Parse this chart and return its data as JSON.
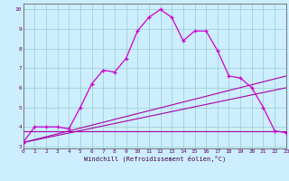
{
  "xlabel": "Windchill (Refroidissement éolien,°C)",
  "bg_color": "#cceeff",
  "grid_color": "#99cccc",
  "line_color": "#cc00cc",
  "line_color2": "#aa00aa",
  "xlim": [
    0,
    23
  ],
  "ylim": [
    3,
    10
  ],
  "xticks": [
    0,
    1,
    2,
    3,
    4,
    5,
    6,
    7,
    8,
    9,
    10,
    11,
    12,
    13,
    14,
    15,
    16,
    17,
    18,
    19,
    20,
    21,
    22,
    23
  ],
  "yticks": [
    3,
    4,
    5,
    6,
    7,
    8,
    9,
    10
  ],
  "series": {
    "line1_x": [
      0,
      1,
      2,
      3,
      4,
      5,
      6,
      7,
      8,
      9,
      10,
      11,
      12,
      13,
      14,
      15,
      16,
      17,
      18,
      19,
      20,
      21,
      22,
      23
    ],
    "line1_y": [
      3.2,
      4.0,
      4.0,
      4.0,
      3.9,
      5.0,
      6.2,
      6.9,
      6.8,
      7.5,
      8.9,
      9.6,
      10.0,
      9.6,
      8.4,
      8.9,
      8.9,
      7.9,
      6.6,
      6.5,
      6.0,
      5.0,
      3.8,
      3.7
    ],
    "line2_x": [
      0,
      23
    ],
    "line2_y": [
      3.2,
      6.6
    ],
    "line3_x": [
      0,
      23
    ],
    "line3_y": [
      3.2,
      6.0
    ],
    "line4_x": [
      0,
      23
    ],
    "line4_y": [
      3.8,
      3.8
    ]
  }
}
